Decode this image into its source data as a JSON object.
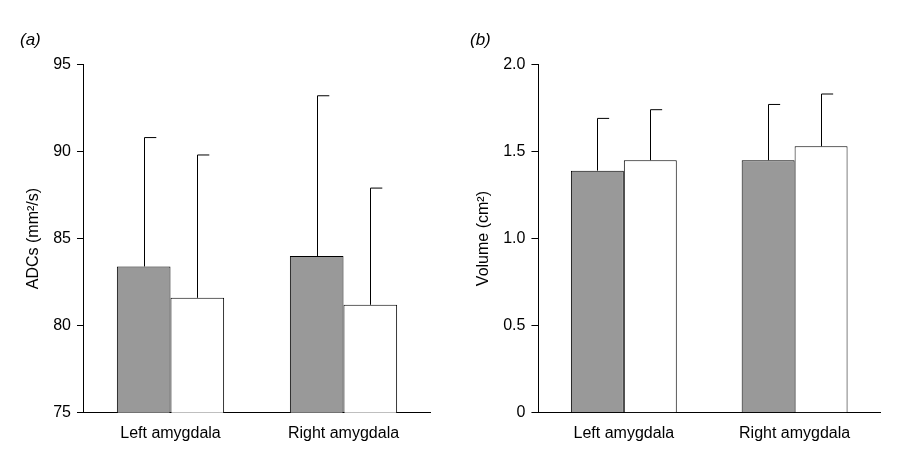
{
  "chart_data": [
    {
      "type": "bar",
      "title": "(a)",
      "y_label": "ADCs (mm²/s)",
      "categories": [
        "Left amygdala",
        "Right amygdala"
      ],
      "series": [
        {
          "color": "#999999",
          "values": [
            83.4,
            84.0
          ],
          "errors": [
            7.4,
            9.2
          ]
        },
        {
          "color": "#ffffff",
          "values": [
            81.6,
            81.2
          ],
          "errors": [
            8.2,
            6.7
          ]
        }
      ],
      "ylim": [
        75,
        95
      ],
      "yticks": [
        75,
        80,
        85,
        90,
        95
      ],
      "grid": false
    },
    {
      "type": "bar",
      "title": "(b)",
      "y_label": "Volume (cm²)",
      "categories": [
        "Left amygdala",
        "Right amygdala"
      ],
      "series": [
        {
          "color": "#999999",
          "values": [
            1.39,
            1.45
          ],
          "errors": [
            0.3,
            0.32
          ]
        },
        {
          "color": "#ffffff",
          "values": [
            1.45,
            1.53
          ],
          "errors": [
            0.29,
            0.3
          ]
        }
      ],
      "ylim": [
        0,
        2.0
      ],
      "yticks": [
        0,
        0.5,
        {
          "value": 1.0,
          "label": "1.0"
        },
        1.5,
        {
          "value": 2.0,
          "label": "2.0"
        }
      ],
      "grid": false
    }
  ]
}
